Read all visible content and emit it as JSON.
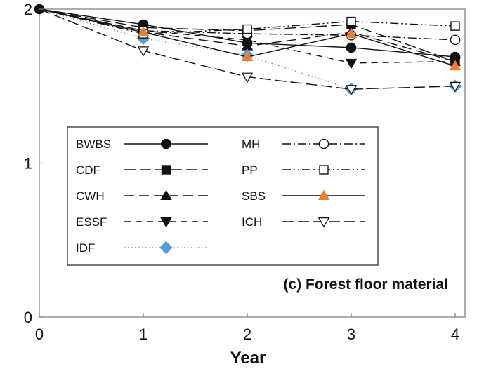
{
  "chart_data": {
    "type": "line",
    "xlabel": "Year",
    "ylabel": "",
    "annotation": "(c) Forest floor material",
    "xlim": [
      0,
      4
    ],
    "ylim": [
      0,
      2
    ],
    "x_ticks": [
      "0",
      "1",
      "2",
      "3",
      "4"
    ],
    "y_ticks": [
      "0",
      "1",
      "2"
    ],
    "x": [
      0,
      1,
      2,
      3,
      4
    ],
    "legend_position": "center-left",
    "grid": false,
    "series": [
      {
        "name": "BWBS",
        "values": [
          2,
          1.9,
          1.78,
          1.75,
          1.69
        ],
        "color": "#111111",
        "marker": "circle-filled",
        "dash": "solid"
      },
      {
        "name": "CDF",
        "values": [
          2,
          1.88,
          1.86,
          1.9,
          1.66
        ],
        "color": "#111111",
        "marker": "square-filled",
        "dash": "long-dash"
      },
      {
        "name": "CWH",
        "values": [
          2,
          1.85,
          1.76,
          1.85,
          1.66
        ],
        "color": "#111111",
        "marker": "triangle-up-filled",
        "dash": "dash"
      },
      {
        "name": "ESSF",
        "values": [
          2,
          1.86,
          1.8,
          1.65,
          1.66
        ],
        "color": "#111111",
        "marker": "triangle-down-filled",
        "dash": "short-dash"
      },
      {
        "name": "IDF",
        "values": [
          2,
          1.81,
          1.7,
          1.48,
          1.5
        ],
        "color": "#5b9bd5",
        "marker": "diamond-filled",
        "dash": "dotted"
      },
      {
        "name": "MH",
        "values": [
          2,
          1.86,
          1.84,
          1.83,
          1.8
        ],
        "color": "#111111",
        "marker": "circle-open",
        "dash": "dash-dot"
      },
      {
        "name": "PP",
        "values": [
          2,
          1.84,
          1.87,
          1.92,
          1.89
        ],
        "color": "#111111",
        "marker": "square-open",
        "dash": "dash-dot-dot"
      },
      {
        "name": "SBS",
        "values": [
          2,
          1.85,
          1.69,
          1.84,
          1.63
        ],
        "color": "#111111",
        "marker_color": "#ed7d31",
        "marker": "triangle-up-filled",
        "dash": "solid"
      },
      {
        "name": "ICH",
        "values": [
          2,
          1.73,
          1.56,
          1.48,
          1.5
        ],
        "color": "#111111",
        "marker": "triangle-down-open",
        "dash": "long-dash"
      }
    ]
  }
}
